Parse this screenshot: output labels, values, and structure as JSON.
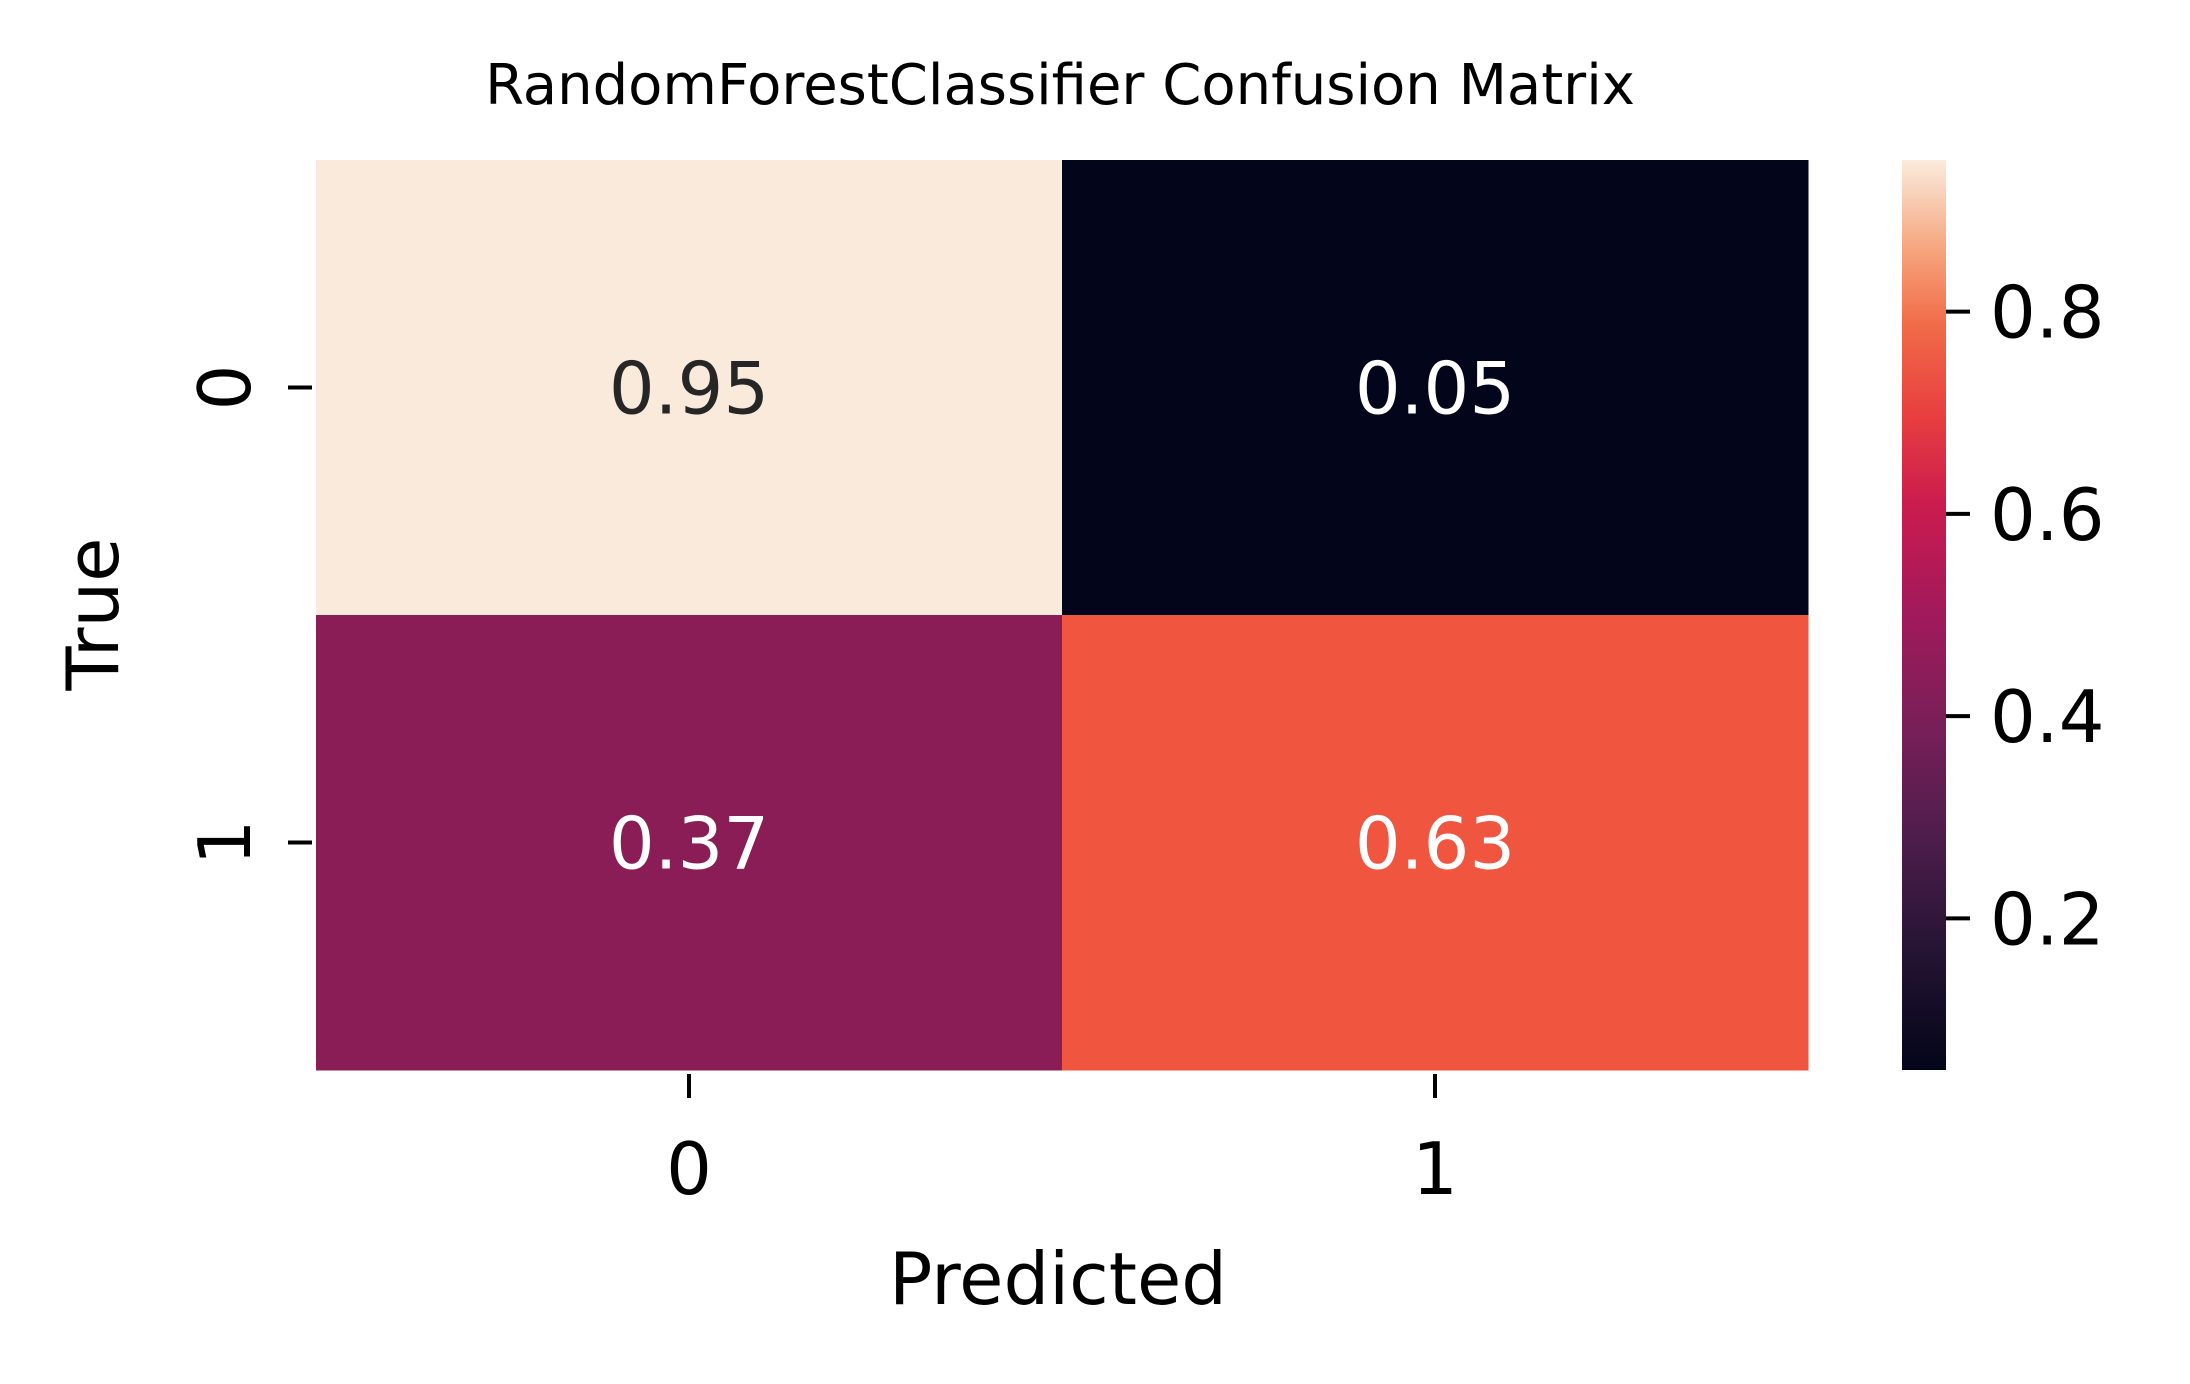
{
  "chart_data": {
    "type": "heatmap",
    "title": "RandomForestClassifier Confusion Matrix",
    "xlabel": "Predicted",
    "ylabel": "True",
    "x_categories": [
      "0",
      "1"
    ],
    "y_categories": [
      "0",
      "1"
    ],
    "values": [
      [
        0.95,
        0.05
      ],
      [
        0.37,
        0.63
      ]
    ],
    "cell_labels": [
      [
        "0.95",
        "0.05"
      ],
      [
        "0.37",
        "0.63"
      ]
    ],
    "colormap": "rocket",
    "color_range": [
      0.05,
      0.95
    ],
    "colorbar": {
      "ticks": [
        0.2,
        0.4,
        0.6,
        0.8
      ],
      "tick_labels": [
        "0.2",
        "0.4",
        "0.6",
        "0.8"
      ]
    },
    "cell_colors": [
      [
        "#faeadc",
        "#03051a"
      ],
      [
        "#8a1d55",
        "#ef553f"
      ]
    ],
    "label_colors": [
      [
        "#262626",
        "#ffffff"
      ],
      [
        "#ffffff",
        "#ffffff"
      ]
    ]
  }
}
